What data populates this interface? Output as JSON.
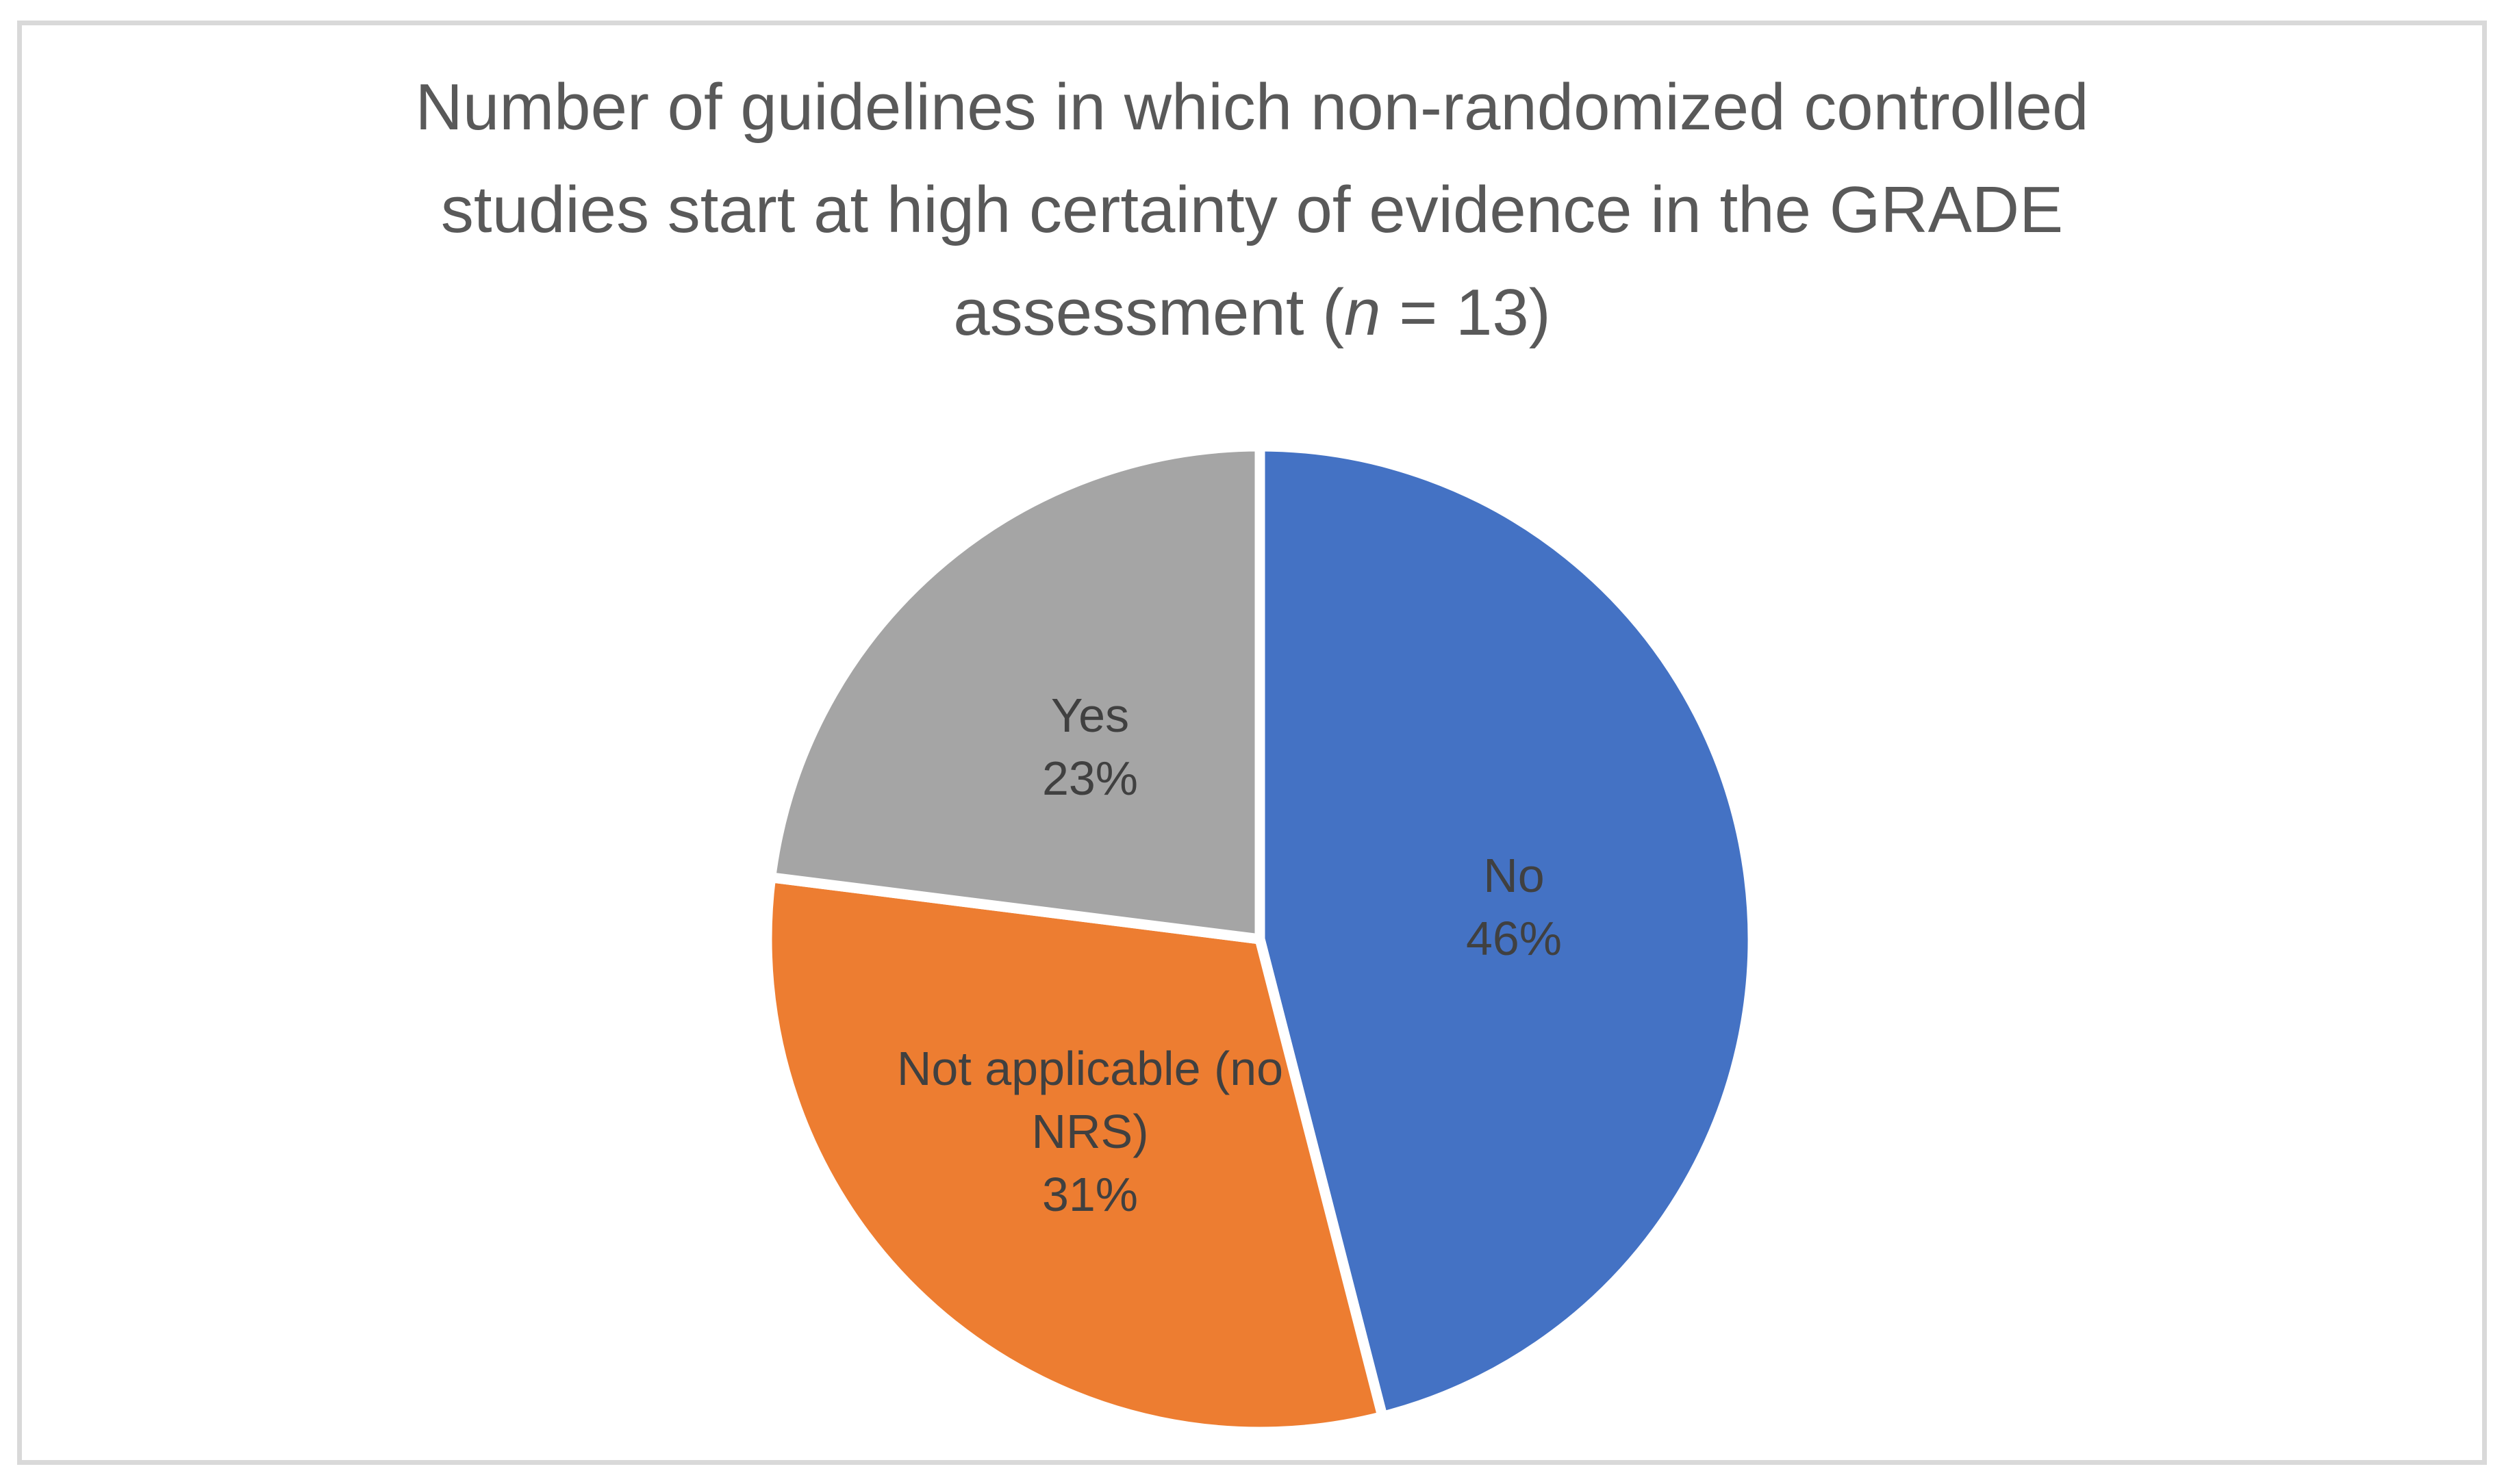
{
  "title": {
    "full": "Number of guidelines in which non-randomized controlled studies start at high certainty of evidence in the GRADE assessment (n = 13)",
    "line1": "Number of guidelines in which non-randomized controlled",
    "line2": "studies start at high certainty of evidence in the GRADE",
    "line3_pre": "assessment (",
    "line3_italic": "n",
    "line3_post": " = 13)",
    "color": "#595959"
  },
  "frame": {
    "border_color": "#d9d9d9",
    "background": "#ffffff"
  },
  "chart_data": {
    "type": "pie",
    "title": "Number of guidelines in which non-randomized controlled studies start at high certainty of evidence in the GRADE assessment (n = 13)",
    "n_total": 13,
    "categories": [
      "No",
      "Not applicable (no NRS)",
      "Yes"
    ],
    "values": [
      46,
      31,
      23
    ],
    "unit": "percent",
    "start_angle_deg": 0,
    "direction": "clockwise",
    "colors": [
      "#4472C4",
      "#ED7D31",
      "#A5A5A5"
    ],
    "slice_border_color": "#FFFFFF",
    "label_color": "#404040",
    "legend": "none",
    "labels": [
      {
        "name_lines": [
          "No"
        ],
        "pct": "46%"
      },
      {
        "name_lines": [
          "Not applicable (no",
          "NRS)"
        ],
        "pct": "31%"
      },
      {
        "name_lines": [
          "Yes"
        ],
        "pct": "23%"
      }
    ]
  }
}
